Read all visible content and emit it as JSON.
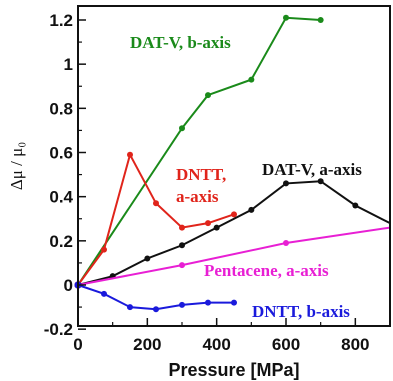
{
  "chart_data": {
    "type": "line",
    "xlabel": "Pressure [MPa]",
    "ylabel": "Δμ / μ₀",
    "xlim": [
      0,
      900
    ],
    "ylim": [
      -0.2,
      1.25
    ],
    "xticks": [
      "0",
      "200",
      "400",
      "600",
      "800"
    ],
    "yticks": [
      "-0.2",
      "0",
      "0.2",
      "0.4",
      "0.6",
      "0.8",
      "1",
      "1.2"
    ],
    "grid": false,
    "legend": "none",
    "series": [
      {
        "name": "DAT-V, b-axis",
        "color": "#1a8a1a",
        "x": [
          0,
          300,
          375,
          500,
          600,
          700
        ],
        "y": [
          0,
          0.71,
          0.86,
          0.93,
          1.21,
          1.2
        ]
      },
      {
        "name": "DNTT, a-axis",
        "color": "#e0241b",
        "x": [
          0,
          75,
          150,
          225,
          300,
          375,
          450
        ],
        "y": [
          0,
          0.16,
          0.59,
          0.37,
          0.26,
          0.28,
          0.32
        ]
      },
      {
        "name": "DAT-V, a-axis",
        "color": "#111111",
        "x": [
          0,
          100,
          200,
          300,
          400,
          500,
          600,
          700,
          800,
          900
        ],
        "y": [
          0,
          0.04,
          0.12,
          0.18,
          0.26,
          0.34,
          0.46,
          0.47,
          0.36,
          0.28
        ]
      },
      {
        "name": "Pentacene, a-axis",
        "color": "#e81fd4",
        "x": [
          0,
          300,
          600,
          900
        ],
        "y": [
          0,
          0.09,
          0.19,
          0.26
        ]
      },
      {
        "name": "DNTT, b-axis",
        "color": "#1a1adc",
        "x": [
          0,
          75,
          150,
          225,
          300,
          375,
          450
        ],
        "y": [
          0,
          -0.04,
          -0.1,
          -0.11,
          -0.09,
          -0.08,
          -0.08
        ]
      }
    ]
  }
}
